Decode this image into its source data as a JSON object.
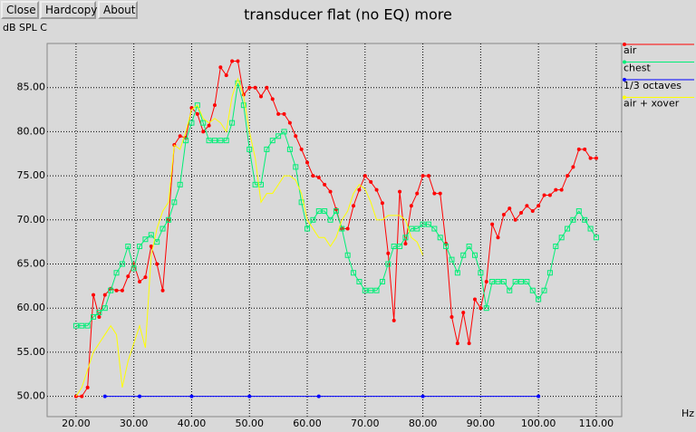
{
  "buttons": [
    "Close",
    "Hardcopy",
    "About"
  ],
  "chart_data": {
    "type": "line",
    "title": "transducer flat (no EQ) more",
    "ylabel": "dB SPL C",
    "xlabel": "Hz",
    "xlim": [
      15,
      114.4
    ],
    "ylim": [
      47.7,
      90
    ],
    "grid": true,
    "legend": "right",
    "xticks": [
      {
        "value": 20,
        "label": "20.00"
      },
      {
        "value": 30,
        "label": "30.00"
      },
      {
        "value": 40,
        "label": "40.00"
      },
      {
        "value": 50,
        "label": "50.00"
      },
      {
        "value": 60,
        "label": "60.00"
      },
      {
        "value": 70,
        "label": "70.00"
      },
      {
        "value": 80,
        "label": "80.00"
      },
      {
        "value": 90,
        "label": "90.00"
      },
      {
        "value": 100,
        "label": "100.00"
      },
      {
        "value": 110,
        "label": "110.00"
      }
    ],
    "yticks": [
      {
        "value": 50,
        "label": "50.00"
      },
      {
        "value": 55,
        "label": "55.00"
      },
      {
        "value": 60,
        "label": "60.00"
      },
      {
        "value": 65,
        "label": "65.00"
      },
      {
        "value": 70,
        "label": "70.00"
      },
      {
        "value": 75,
        "label": "75.00"
      },
      {
        "value": 80,
        "label": "80.00"
      },
      {
        "value": 85,
        "label": "85.00"
      }
    ],
    "series": [
      {
        "name": "air",
        "color": "#ff0000",
        "marker": "dot",
        "x": [
          20,
          21,
          22,
          23,
          24,
          25,
          26,
          27,
          28,
          29,
          30,
          31,
          32,
          33,
          34,
          35,
          36,
          37,
          38,
          39,
          40,
          41,
          42,
          43,
          44,
          45,
          46,
          47,
          48,
          49,
          50,
          51,
          52,
          53,
          54,
          55,
          56,
          57,
          58,
          59,
          60,
          61,
          62,
          63,
          64,
          65,
          66,
          67,
          68,
          69,
          70,
          71,
          72,
          73,
          74,
          75,
          76,
          77,
          78,
          79,
          80,
          81,
          82,
          83,
          84,
          85,
          86,
          87,
          88,
          89,
          90,
          91,
          92,
          93,
          94,
          95,
          96,
          97,
          98,
          99,
          100,
          101,
          102,
          103,
          104,
          105,
          106,
          107,
          108,
          109,
          110
        ],
        "values": [
          50,
          50,
          51,
          61.5,
          59,
          61.5,
          62.2,
          62,
          62,
          63.6,
          65,
          63,
          63.5,
          67,
          65,
          62,
          70,
          78.5,
          79.5,
          79.3,
          82.7,
          82,
          80,
          80.7,
          83,
          87.3,
          86.4,
          88,
          88,
          84.2,
          85,
          85,
          84,
          85,
          83.7,
          82,
          82,
          81,
          79.5,
          78,
          76.5,
          75,
          74.8,
          74,
          73.2,
          71.2,
          69,
          69,
          71.6,
          73.4,
          75,
          74.3,
          73.4,
          71.9,
          66.2,
          58.6,
          73.2,
          67.3,
          71.6,
          73,
          75,
          75,
          73,
          73,
          67.3,
          59,
          56,
          59.5,
          56,
          61,
          60,
          63,
          69.5,
          68,
          70.6,
          71.3,
          70,
          70.8,
          71.6,
          71,
          71.6,
          72.8,
          72.8,
          73.4,
          73.4,
          75,
          76,
          78,
          78,
          77,
          77
        ]
      },
      {
        "name": "chest",
        "color": "#00ee77",
        "marker": "square",
        "x": [
          20,
          21,
          22,
          23,
          24,
          25,
          26,
          27,
          28,
          29,
          30,
          31,
          32,
          33,
          34,
          35,
          36,
          37,
          38,
          39,
          40,
          41,
          42,
          43,
          44,
          45,
          46,
          47,
          48,
          49,
          50,
          51,
          52,
          53,
          54,
          55,
          56,
          57,
          58,
          59,
          60,
          61,
          62,
          63,
          64,
          65,
          66,
          67,
          68,
          69,
          70,
          71,
          72,
          73,
          74,
          75,
          76,
          77,
          78,
          79,
          80,
          81,
          82,
          83,
          84,
          85,
          86,
          87,
          88,
          89,
          90,
          91,
          92,
          93,
          94,
          95,
          96,
          97,
          98,
          99,
          100,
          101,
          102,
          103,
          104,
          105,
          106,
          107,
          108,
          109,
          110
        ],
        "values": [
          58,
          58,
          58,
          59,
          59.5,
          60,
          62,
          64,
          65,
          67,
          64.5,
          67,
          67.8,
          68.3,
          67.5,
          69,
          70,
          72,
          74,
          79,
          81,
          83,
          81,
          79,
          79,
          79,
          79,
          81,
          85.5,
          83,
          78,
          74,
          74,
          78,
          79,
          79.5,
          80,
          78,
          76,
          72,
          69,
          70,
          71,
          71,
          70,
          71,
          69,
          66,
          64,
          63,
          62,
          62,
          62,
          63,
          65,
          67,
          67,
          68,
          69,
          69,
          69.5,
          69.5,
          69,
          68,
          67,
          65.5,
          64,
          66,
          67,
          66,
          64,
          60,
          63,
          63,
          63,
          62,
          63,
          63,
          63,
          62,
          61,
          62,
          64,
          67,
          68,
          69,
          70,
          71,
          70,
          69,
          68
        ]
      },
      {
        "name": "1/3 octaves",
        "color": "#0000ff",
        "marker": "dot",
        "x": [
          25,
          31,
          40,
          50,
          62,
          80,
          100
        ],
        "values": [
          50,
          50,
          50,
          50,
          50,
          50,
          50
        ]
      },
      {
        "name": "air + xover",
        "color": "#ffff00",
        "marker": "none",
        "x": [
          20,
          21,
          22,
          23,
          24,
          25,
          26,
          27,
          28,
          29,
          30,
          31,
          32,
          33,
          34,
          35,
          36,
          37,
          38,
          39,
          40,
          41,
          42,
          43,
          44,
          45,
          46,
          47,
          48,
          49,
          50,
          51,
          52,
          53,
          54,
          55,
          56,
          57,
          58,
          59,
          60,
          61,
          62,
          63,
          64,
          65,
          66,
          67,
          68,
          69,
          70,
          71,
          72,
          73,
          74,
          75,
          76,
          77,
          78,
          79,
          80
        ],
        "values": [
          50,
          51,
          53,
          55,
          56,
          57,
          58,
          57,
          51,
          54,
          56,
          58,
          55.5,
          66,
          69,
          71,
          72,
          78.5,
          78,
          80,
          82.5,
          83,
          81.5,
          81,
          81.5,
          81,
          80,
          84,
          86,
          84,
          80,
          77,
          72,
          73,
          73,
          74,
          75,
          75,
          74.5,
          73,
          70,
          69,
          68,
          68,
          67,
          68,
          70,
          71,
          73,
          74,
          73.5,
          72,
          70,
          70,
          70.5,
          70.5,
          70.5,
          70,
          68,
          67.5,
          66
        ]
      }
    ]
  }
}
